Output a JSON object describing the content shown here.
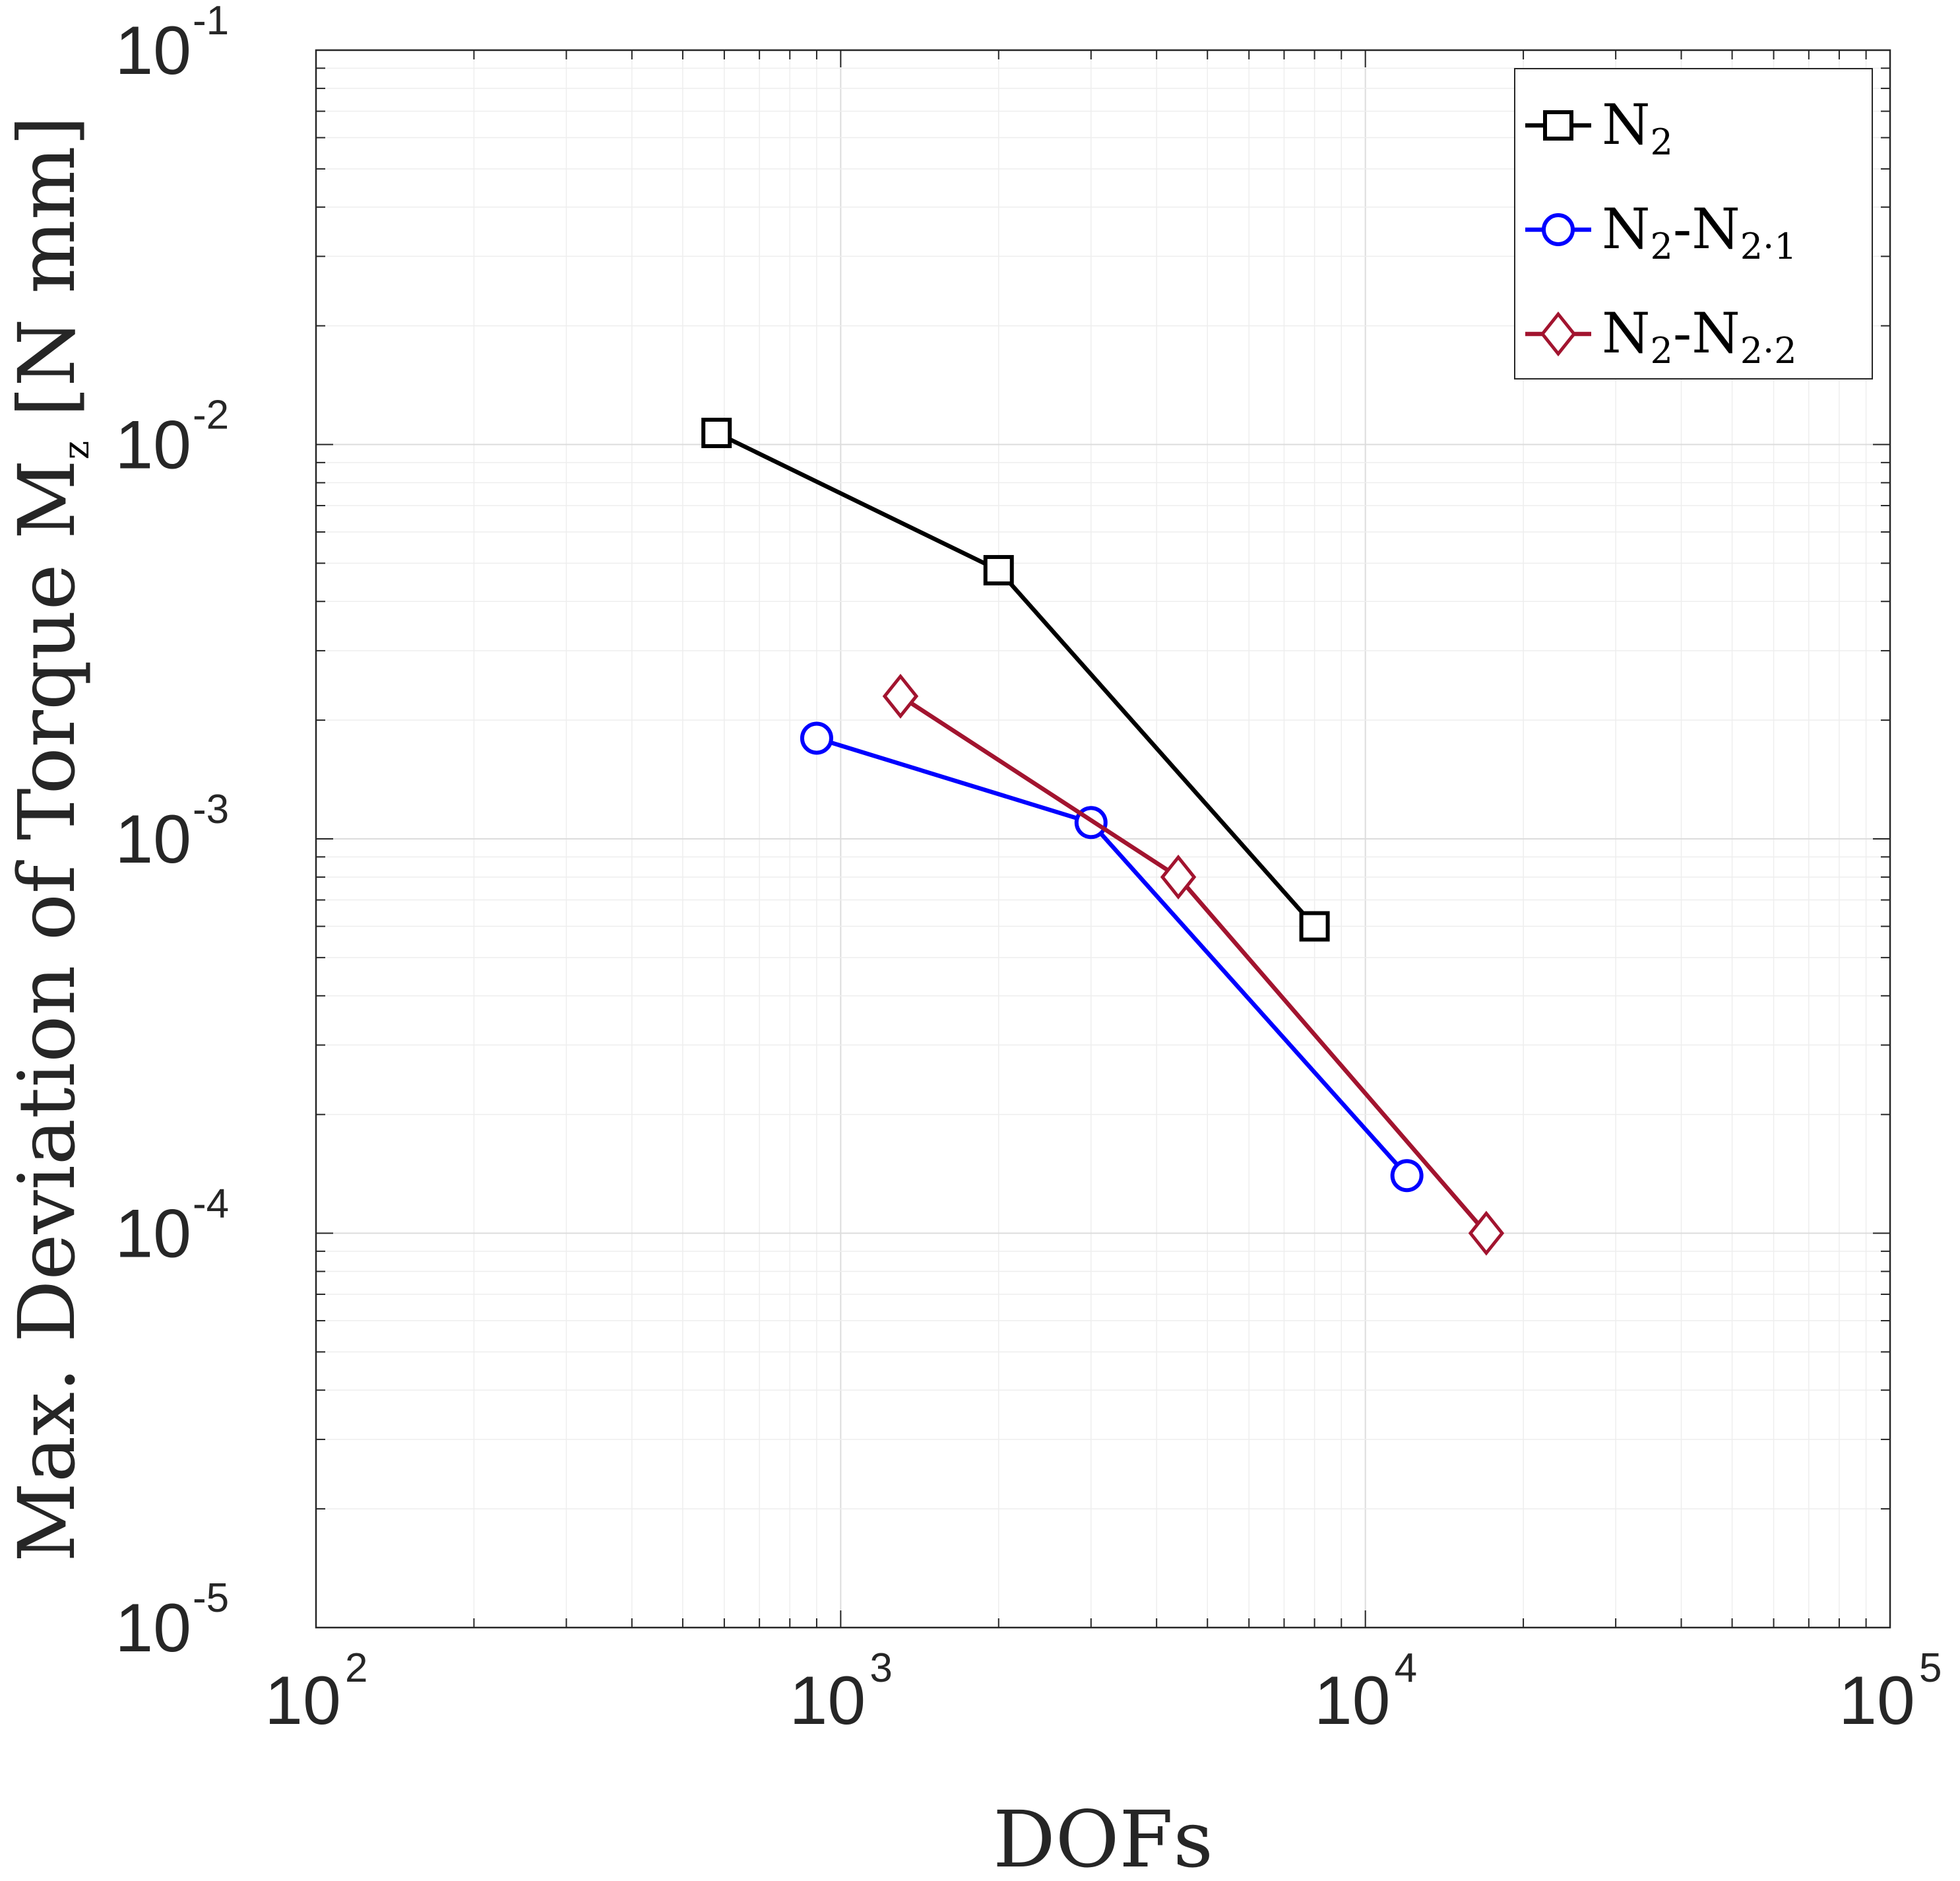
{
  "chart_data": {
    "type": "line",
    "title": "",
    "xscale": "log",
    "yscale": "log",
    "xlim": [
      100,
      100000
    ],
    "ylim": [
      1e-05,
      0.1
    ],
    "xlabel": "DOFs",
    "ylabel": "Max. Deviation of Torque M",
    "ylabel_sub": "z",
    "ylabel_unit": "[N mm]",
    "grid": true,
    "legend_position": "top-right",
    "x_ticks": [
      {
        "value": 100,
        "base": "10",
        "exp": "2"
      },
      {
        "value": 1000,
        "base": "10",
        "exp": "3"
      },
      {
        "value": 10000,
        "base": "10",
        "exp": "4"
      },
      {
        "value": 100000,
        "base": "10",
        "exp": "5"
      }
    ],
    "y_ticks": [
      {
        "value": 0.1,
        "base": "10",
        "exp": "-1"
      },
      {
        "value": 0.01,
        "base": "10",
        "exp": "-2"
      },
      {
        "value": 0.001,
        "base": "10",
        "exp": "-3"
      },
      {
        "value": 0.0001,
        "base": "10",
        "exp": "-4"
      },
      {
        "value": 1e-05,
        "base": "10",
        "exp": "-5"
      }
    ],
    "series": [
      {
        "name": "N2",
        "label": "N",
        "label_sub": "2",
        "label_mid": "",
        "label_sub2": "",
        "color": "#000000",
        "marker": "square",
        "x": [
          580,
          2000,
          8000
        ],
        "y": [
          0.0107,
          0.0048,
          0.0006
        ]
      },
      {
        "name": "N2-N2.1",
        "label": "N",
        "label_sub": "2",
        "label_mid": "-N",
        "label_sub2": "2·1",
        "color": "#0000ff",
        "marker": "circle",
        "x": [
          900,
          3000,
          12000
        ],
        "y": [
          0.0018,
          0.0011,
          0.00014
        ]
      },
      {
        "name": "N2-N2.2",
        "label": "N",
        "label_sub": "2",
        "label_mid": "-N",
        "label_sub2": "2·2",
        "color": "#a2142f",
        "marker": "diamond",
        "x": [
          1300,
          4400,
          17000
        ],
        "y": [
          0.0023,
          0.0008,
          0.0001
        ]
      }
    ]
  }
}
